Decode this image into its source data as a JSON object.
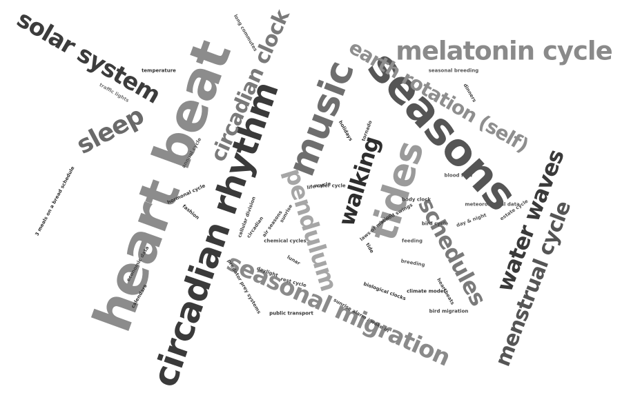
{
  "words": [
    {
      "text": "heart beat",
      "color": "#8c8c8c"
    },
    {
      "text": "circadian rhythm",
      "color": "#3a3a3a"
    },
    {
      "text": "seasons",
      "color": "#555555"
    },
    {
      "text": "music",
      "color": "#6e6e6e"
    },
    {
      "text": "circadian clock",
      "color": "#7a7a7a"
    },
    {
      "text": "solar system",
      "color": "#3c3c3c"
    },
    {
      "text": "melatonin cycle",
      "color": "#8a8a8a"
    },
    {
      "text": "earth rotation (self)",
      "color": "#8e8e8e"
    },
    {
      "text": "tides",
      "color": "#9a9a9a"
    },
    {
      "text": "walking",
      "color": "#2e2e2e"
    },
    {
      "text": "pendulum",
      "color": "#a6a6a6"
    },
    {
      "text": "seasonal migration",
      "color": "#8a8a8a"
    },
    {
      "text": "schedules",
      "color": "#7a7a7a"
    },
    {
      "text": "water waves",
      "color": "#3a3a3a"
    },
    {
      "text": "menstrual cycle",
      "color": "#555555"
    },
    {
      "text": "sleep",
      "color": "#6a6a6a"
    },
    {
      "text": "temperature",
      "color": "#333333"
    },
    {
      "text": "long commutes",
      "color": "#555555"
    },
    {
      "text": "traffic lights",
      "color": "#777777"
    },
    {
      "text": "seasonal breeding",
      "color": "#555555"
    },
    {
      "text": "dinners",
      "color": "#444444"
    },
    {
      "text": "holidays",
      "color": "#333333"
    },
    {
      "text": "tornado",
      "color": "#444444"
    },
    {
      "text": "blood flow",
      "color": "#555555"
    },
    {
      "text": "annual cycle",
      "color": "#555555"
    },
    {
      "text": "hormonal cycle",
      "color": "#333333"
    },
    {
      "text": "fashion",
      "color": "#333333"
    },
    {
      "text": "life cycle",
      "color": "#444444"
    },
    {
      "text": "cellular division",
      "color": "#444444"
    },
    {
      "text": "feeding",
      "color": "#555555"
    },
    {
      "text": "sunrise",
      "color": "#444444"
    },
    {
      "text": "meteorological data",
      "color": "#555555"
    },
    {
      "text": "day & night",
      "color": "#555555"
    },
    {
      "text": "estate cycle",
      "color": "#555555"
    },
    {
      "text": "3 meals on a bread schedule",
      "color": "#333333"
    },
    {
      "text": "chemical cycles",
      "color": "#444444"
    },
    {
      "text": "biological clocks",
      "color": "#333333"
    },
    {
      "text": "breeding",
      "color": "#555555"
    },
    {
      "text": "heartbeats",
      "color": "#444444"
    },
    {
      "text": "climate model",
      "color": "#333333"
    },
    {
      "text": "bird migration",
      "color": "#444444"
    },
    {
      "text": "public transport",
      "color": "#333333"
    },
    {
      "text": "sunrise alarm / wake in",
      "color": "#444444"
    },
    {
      "text": "economic data",
      "color": "#444444"
    },
    {
      "text": "calendars",
      "color": "#333333"
    },
    {
      "text": "predator prey systems",
      "color": "#444444"
    },
    {
      "text": "circadian",
      "color": "#444444"
    },
    {
      "text": "air seasons",
      "color": "#444444"
    },
    {
      "text": "lunar",
      "color": "#444444"
    },
    {
      "text": "tide",
      "color": "#333333"
    },
    {
      "text": "water cycle",
      "color": "#444444"
    },
    {
      "text": "daylight",
      "color": "#444444"
    },
    {
      "text": "rest cycle",
      "color": "#444444"
    },
    {
      "text": "bird cycle",
      "color": "#444444"
    },
    {
      "text": "mood swings",
      "color": "#444444"
    },
    {
      "text": "body clock",
      "color": "#444444"
    },
    {
      "text": "laws of motion",
      "color": "#444444"
    }
  ]
}
